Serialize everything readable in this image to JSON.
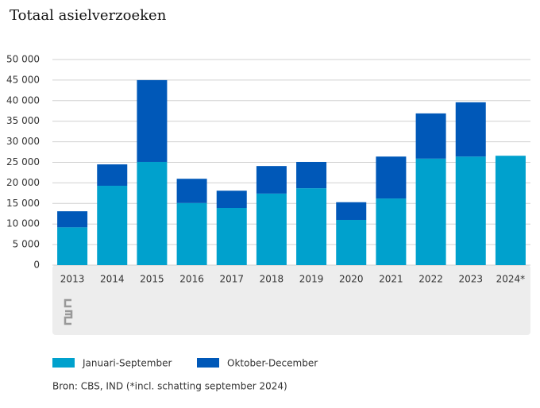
{
  "chart_data": {
    "type": "stacked-bar",
    "title": "Totaal asielverzoeken",
    "categories": [
      "2013",
      "2014",
      "2015",
      "2016",
      "2017",
      "2018",
      "2019",
      "2020",
      "2021",
      "2022",
      "2023",
      "2024*"
    ],
    "series": [
      {
        "name": "Januari-September",
        "color": "#00a1cd",
        "values": [
          9200,
          19300,
          25100,
          15100,
          13900,
          17400,
          18700,
          11000,
          16200,
          25900,
          26400,
          26600
        ]
      },
      {
        "name": "Oktober-December",
        "color": "#0058b8",
        "values": [
          3900,
          5200,
          19900,
          5900,
          4200,
          6700,
          6400,
          4300,
          10200,
          11000,
          13200,
          null
        ]
      }
    ],
    "ylim": [
      0,
      50000
    ],
    "yticks": [
      0,
      {
        "value": 5000,
        "label": "5 000"
      },
      {
        "value": 10000,
        "label": "10 000"
      },
      {
        "value": 15000,
        "label": "15 000"
      },
      {
        "value": 20000,
        "label": "20 000"
      },
      {
        "value": 25000,
        "label": "25 000"
      },
      {
        "value": 30000,
        "label": "30 000"
      },
      {
        "value": 35000,
        "label": "35 000"
      },
      {
        "value": 40000,
        "label": "40 000"
      },
      {
        "value": 45000,
        "label": "45 000"
      },
      {
        "value": 50000,
        "label": "50 000"
      }
    ],
    "grid": true,
    "source": "Bron: CBS, IND (*incl. schatting september 2024)"
  }
}
